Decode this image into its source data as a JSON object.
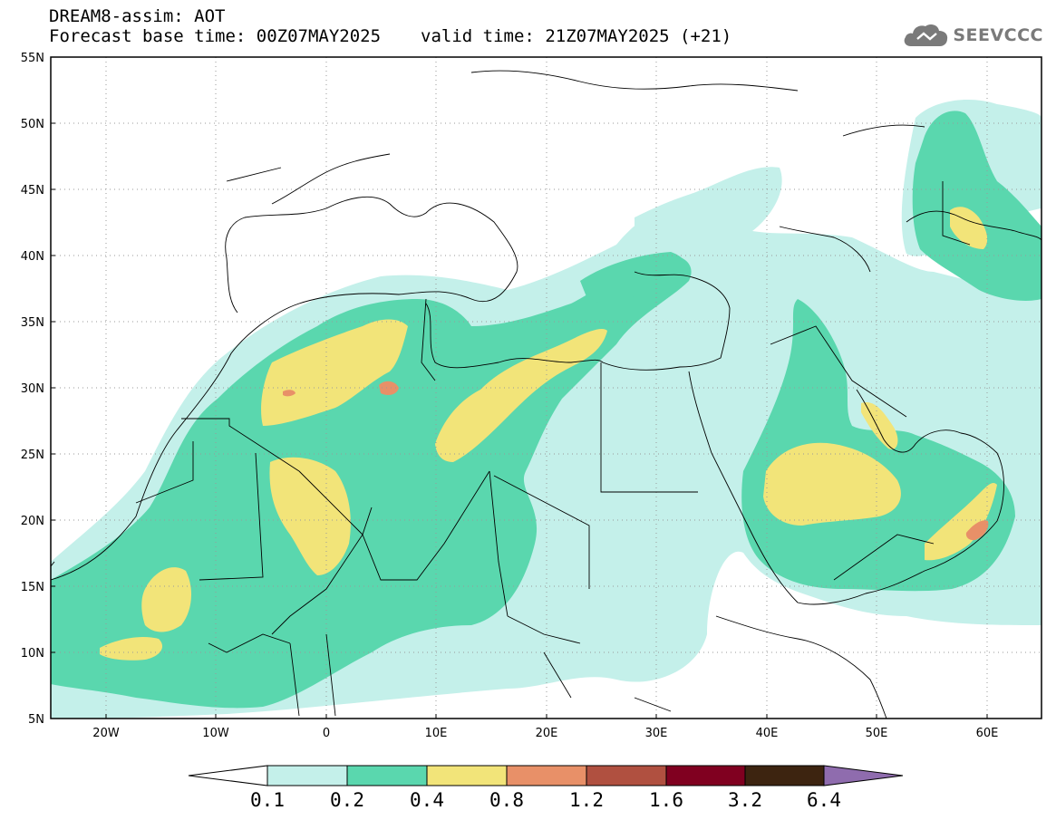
{
  "header": {
    "line1": "DREAM8-assim: AOT",
    "base_label": "Forecast base time: 00Z07MAY2025",
    "valid_label": "valid time: 21Z07MAY2025 (+21)"
  },
  "logo": {
    "text": "SEEVCCC",
    "icon": "cloud-icon"
  },
  "map": {
    "projection": "lat-lon",
    "lon_range": [
      -25,
      65
    ],
    "lat_range": [
      5,
      55
    ],
    "lat_ticks": [
      "55N",
      "50N",
      "45N",
      "40N",
      "35N",
      "30N",
      "25N",
      "20N",
      "15N",
      "10N",
      "5N"
    ],
    "lon_ticks": [
      "20W",
      "10W",
      "0",
      "10E",
      "20E",
      "30E",
      "40E",
      "50E",
      "60E"
    ],
    "gridlines": "dotted"
  },
  "colorbar": {
    "levels": [
      "0.1",
      "0.2",
      "0.4",
      "0.8",
      "1.2",
      "1.6",
      "3.2",
      "6.4"
    ],
    "colors": [
      "#c4f0ea",
      "#5ad7ae",
      "#f2e479",
      "#e89068",
      "#b05040",
      "#800020",
      "#3d2410",
      "#8f6cae"
    ],
    "under_color": "#ffffff",
    "over_color": "#8f6cae"
  }
}
